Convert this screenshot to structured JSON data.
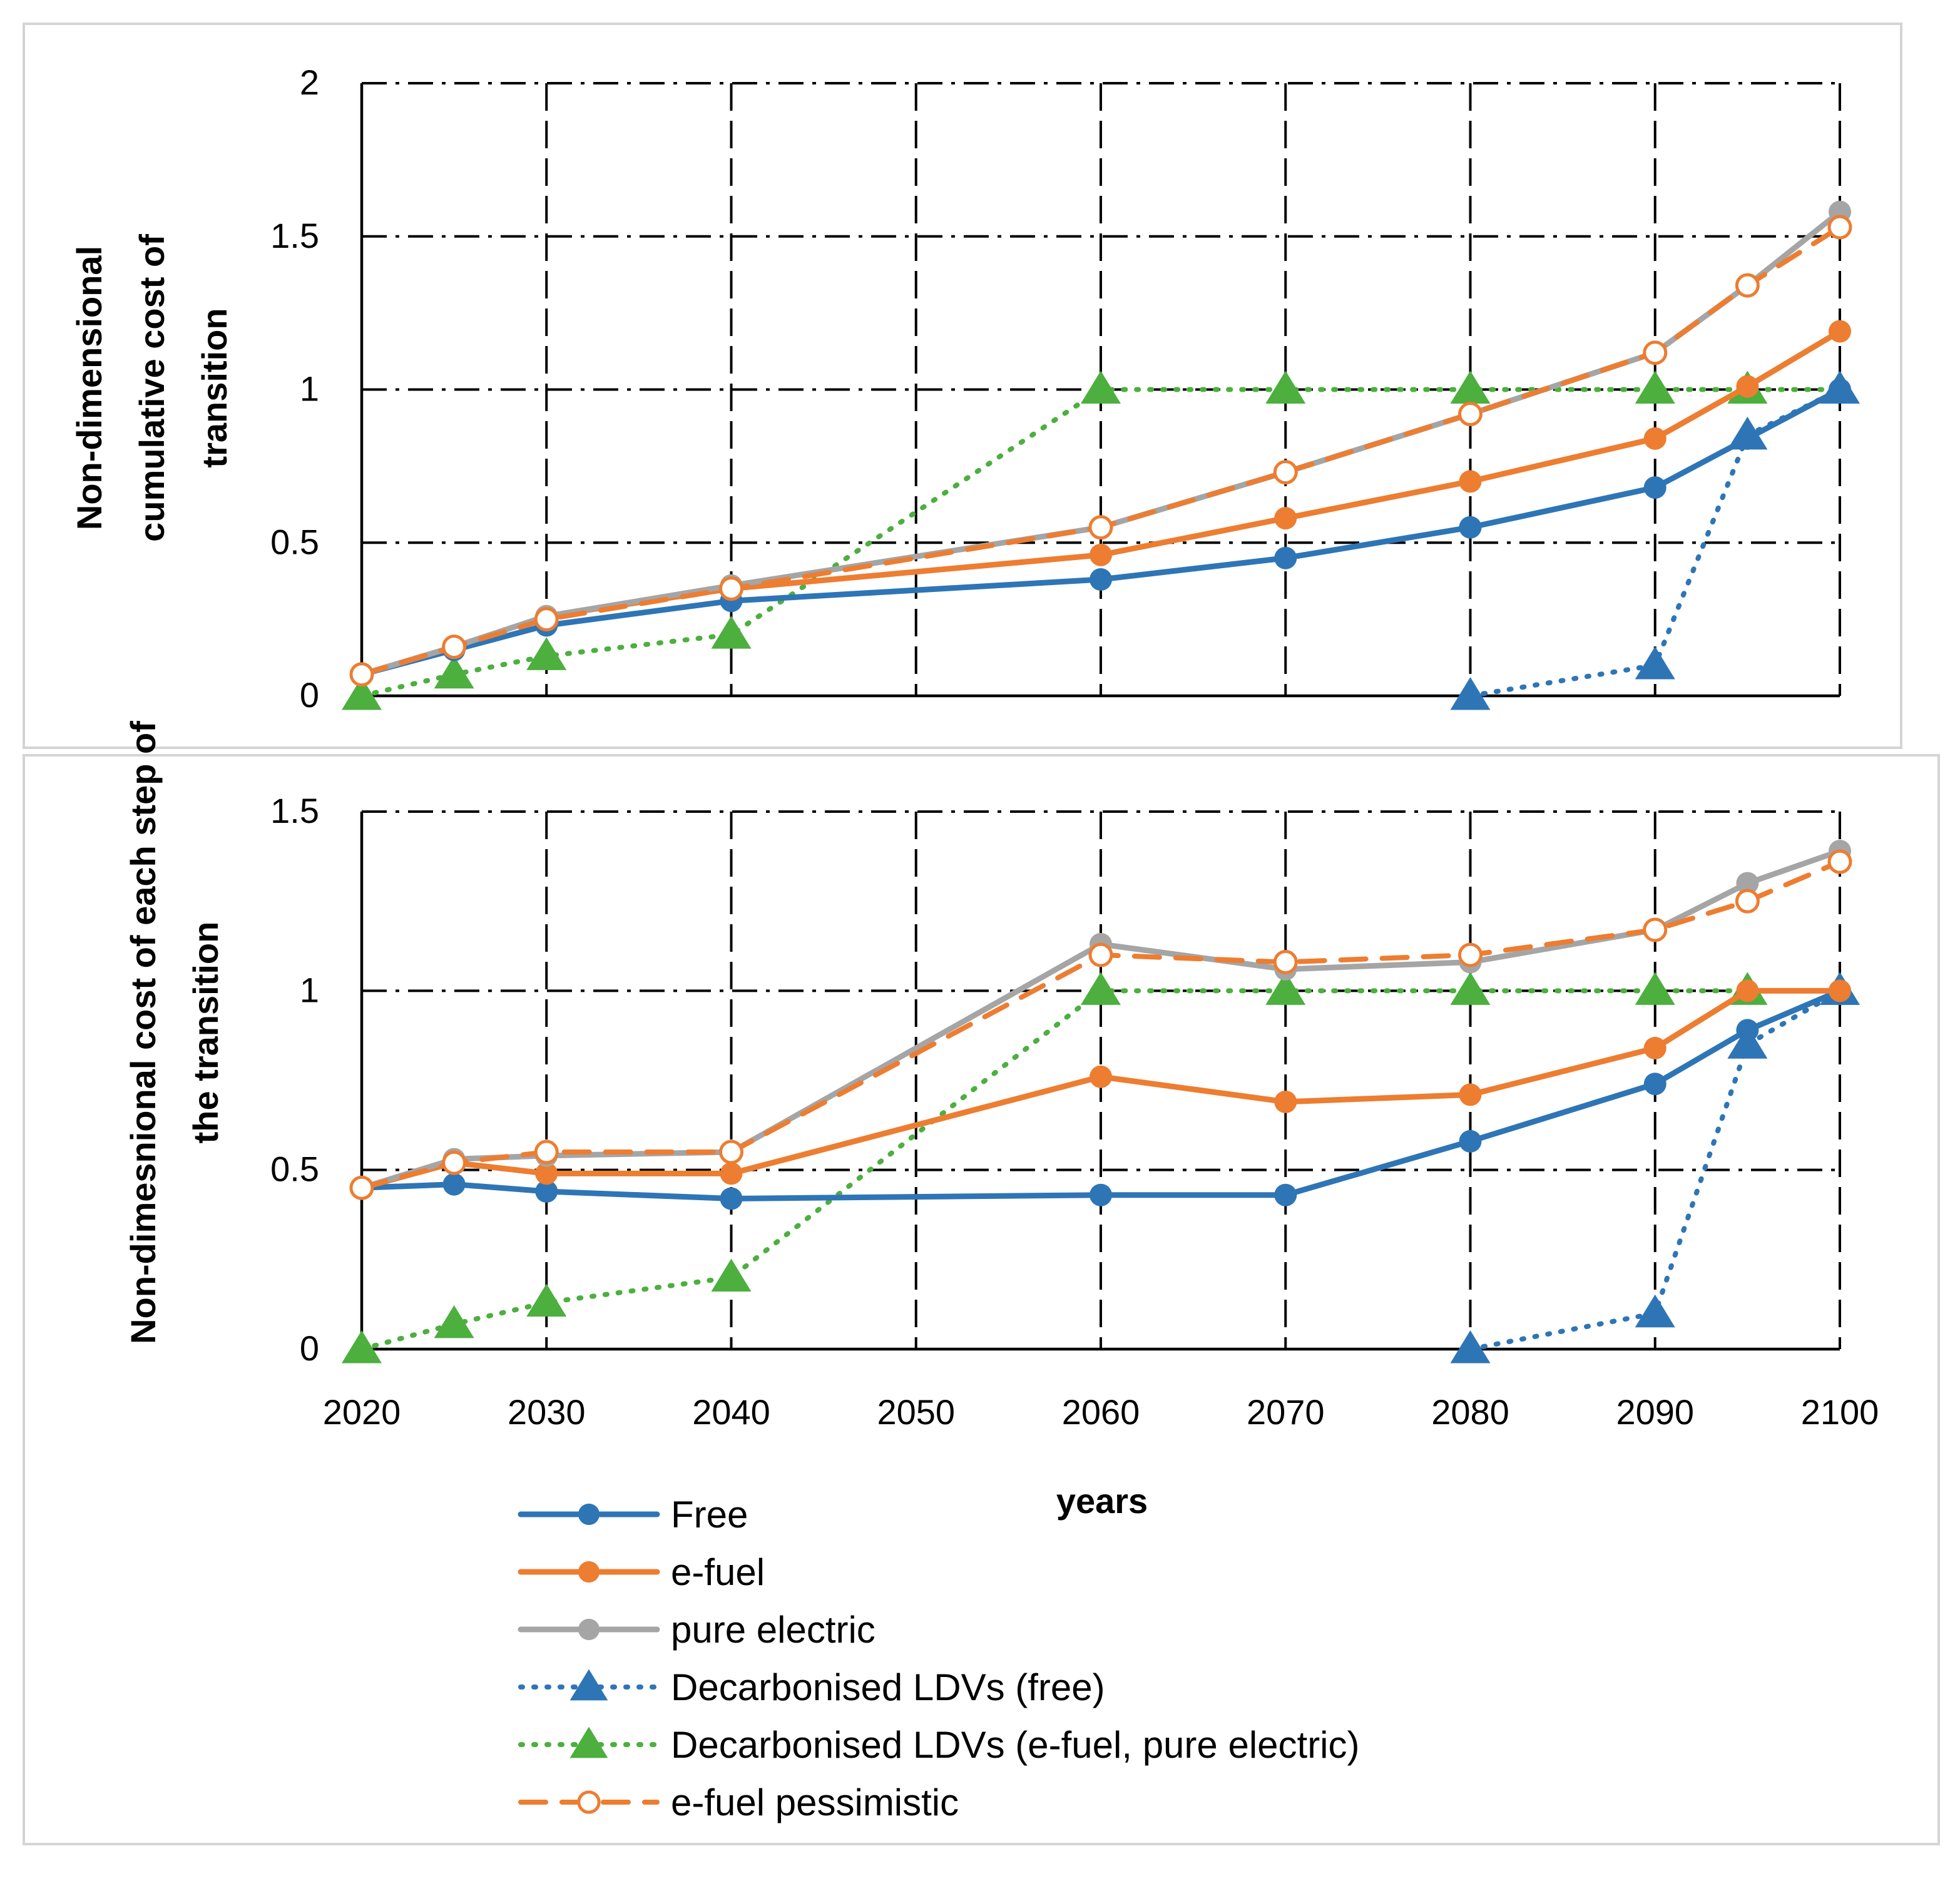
{
  "colors": {
    "free": "#2E75B6",
    "efuel": "#ED7D31",
    "pure_electric": "#A5A5A5",
    "decarb_free": "#2E75B6",
    "decarb_efuel_pe": "#4CAF3E",
    "efuel_pessimistic": "#ED7D31"
  },
  "legend": {
    "items": [
      {
        "key": "free",
        "label": "Free",
        "line": "solid",
        "marker": "circle"
      },
      {
        "key": "efuel",
        "label": "e-fuel",
        "line": "solid",
        "marker": "circle"
      },
      {
        "key": "pure_electric",
        "label": "pure electric",
        "line": "solid",
        "marker": "circle"
      },
      {
        "key": "decarb_free",
        "label": "Decarbonised LDVs (free)",
        "line": "dotted",
        "marker": "triangle"
      },
      {
        "key": "decarb_efuel_pe",
        "label": "Decarbonised LDVs (e-fuel, pure electric)",
        "line": "dotted",
        "marker": "triangle"
      },
      {
        "key": "efuel_pessimistic",
        "label": "e-fuel pessimistic",
        "line": "dashed",
        "marker": "open-circle"
      }
    ]
  },
  "chart_data": [
    {
      "type": "line",
      "title": "",
      "xlabel": "",
      "ylabel_lines": [
        "Non-dimensional",
        "cumulative cost of",
        "transition"
      ],
      "xlim": [
        2020,
        2100
      ],
      "ylim": [
        0,
        2
      ],
      "yticks": [
        0,
        0.5,
        1,
        1.5,
        2
      ],
      "ytick_labels": [
        "0",
        "0.5",
        "1",
        "1.5",
        "2"
      ],
      "xticks": [
        2020,
        2030,
        2040,
        2050,
        2060,
        2070,
        2080,
        2090,
        2100
      ],
      "grid": true,
      "series": [
        {
          "key": "free",
          "name": "Free",
          "x": [
            2020,
            2025,
            2030,
            2040,
            2060,
            2070,
            2080,
            2090,
            2095,
            2100
          ],
          "values": [
            0.07,
            0.15,
            0.23,
            0.31,
            0.38,
            0.45,
            0.55,
            0.68,
            0.84,
            1.0
          ]
        },
        {
          "key": "efuel",
          "name": "e-fuel",
          "x": [
            2020,
            2025,
            2030,
            2040,
            2060,
            2070,
            2080,
            2090,
            2095,
            2100
          ],
          "values": [
            0.07,
            0.16,
            0.26,
            0.35,
            0.46,
            0.58,
            0.7,
            0.84,
            1.01,
            1.19
          ]
        },
        {
          "key": "pure_electric",
          "name": "pure electric",
          "x": [
            2020,
            2025,
            2030,
            2040,
            2060,
            2070,
            2080,
            2090,
            2095,
            2100
          ],
          "values": [
            0.07,
            0.16,
            0.26,
            0.36,
            0.55,
            0.73,
            0.92,
            1.12,
            1.34,
            1.58
          ]
        },
        {
          "key": "decarb_free",
          "name": "Decarbonised LDVs (free)",
          "x": [
            2080,
            2090,
            2095,
            2100
          ],
          "values": [
            0.0,
            0.1,
            0.85,
            1.0
          ]
        },
        {
          "key": "decarb_efuel_pe",
          "name": "Decarbonised LDVs (e-fuel, pure electric)",
          "x": [
            2020,
            2025,
            2030,
            2040,
            2060,
            2070,
            2080,
            2090,
            2095,
            2100
          ],
          "values": [
            0.0,
            0.07,
            0.13,
            0.2,
            1.0,
            1.0,
            1.0,
            1.0,
            1.0,
            1.0
          ]
        },
        {
          "key": "efuel_pessimistic",
          "name": "e-fuel pessimistic",
          "x": [
            2020,
            2025,
            2030,
            2040,
            2060,
            2070,
            2080,
            2090,
            2095,
            2100
          ],
          "values": [
            0.07,
            0.16,
            0.25,
            0.35,
            0.55,
            0.73,
            0.92,
            1.12,
            1.34,
            1.53
          ]
        }
      ]
    },
    {
      "type": "line",
      "title": "",
      "xlabel": "years",
      "ylabel_lines": [
        "Non-dimesnional cost of each step of",
        "the transition"
      ],
      "xlim": [
        2020,
        2100
      ],
      "ylim": [
        0,
        1.5
      ],
      "yticks": [
        0,
        0.5,
        1,
        1.5
      ],
      "ytick_labels": [
        "0",
        "0.5",
        "1",
        "1.5"
      ],
      "xticks": [
        2020,
        2030,
        2040,
        2050,
        2060,
        2070,
        2080,
        2090,
        2100
      ],
      "xtick_labels": [
        "2020",
        "2030",
        "2040",
        "2050",
        "2060",
        "2070",
        "2080",
        "2090",
        "2100"
      ],
      "grid": true,
      "series": [
        {
          "key": "free",
          "name": "Free",
          "x": [
            2020,
            2025,
            2030,
            2040,
            2060,
            2070,
            2080,
            2090,
            2095,
            2100
          ],
          "values": [
            0.45,
            0.46,
            0.44,
            0.42,
            0.43,
            0.43,
            0.58,
            0.74,
            0.89,
            1.0
          ]
        },
        {
          "key": "efuel",
          "name": "e-fuel",
          "x": [
            2020,
            2025,
            2030,
            2040,
            2060,
            2070,
            2080,
            2090,
            2095,
            2100
          ],
          "values": [
            0.45,
            0.52,
            0.49,
            0.49,
            0.76,
            0.69,
            0.71,
            0.84,
            1.0,
            1.0
          ]
        },
        {
          "key": "pure_electric",
          "name": "pure electric",
          "x": [
            2020,
            2025,
            2030,
            2040,
            2060,
            2070,
            2080,
            2090,
            2095,
            2100
          ],
          "values": [
            0.45,
            0.53,
            0.54,
            0.55,
            1.13,
            1.06,
            1.08,
            1.17,
            1.3,
            1.39
          ]
        },
        {
          "key": "decarb_free",
          "name": "Decarbonised LDVs (free)",
          "x": [
            2080,
            2090,
            2095,
            2100
          ],
          "values": [
            0.0,
            0.1,
            0.85,
            1.0
          ]
        },
        {
          "key": "decarb_efuel_pe",
          "name": "Decarbonised LDVs (e-fuel, pure electric)",
          "x": [
            2020,
            2025,
            2030,
            2040,
            2060,
            2070,
            2080,
            2090,
            2095,
            2100
          ],
          "values": [
            0.0,
            0.07,
            0.13,
            0.2,
            1.0,
            1.0,
            1.0,
            1.0,
            1.0,
            1.0
          ]
        },
        {
          "key": "efuel_pessimistic",
          "name": "e-fuel pessimistic",
          "x": [
            2020,
            2025,
            2030,
            2040,
            2060,
            2070,
            2080,
            2090,
            2095,
            2100
          ],
          "values": [
            0.45,
            0.52,
            0.55,
            0.55,
            1.1,
            1.08,
            1.1,
            1.17,
            1.25,
            1.36
          ]
        }
      ]
    }
  ]
}
